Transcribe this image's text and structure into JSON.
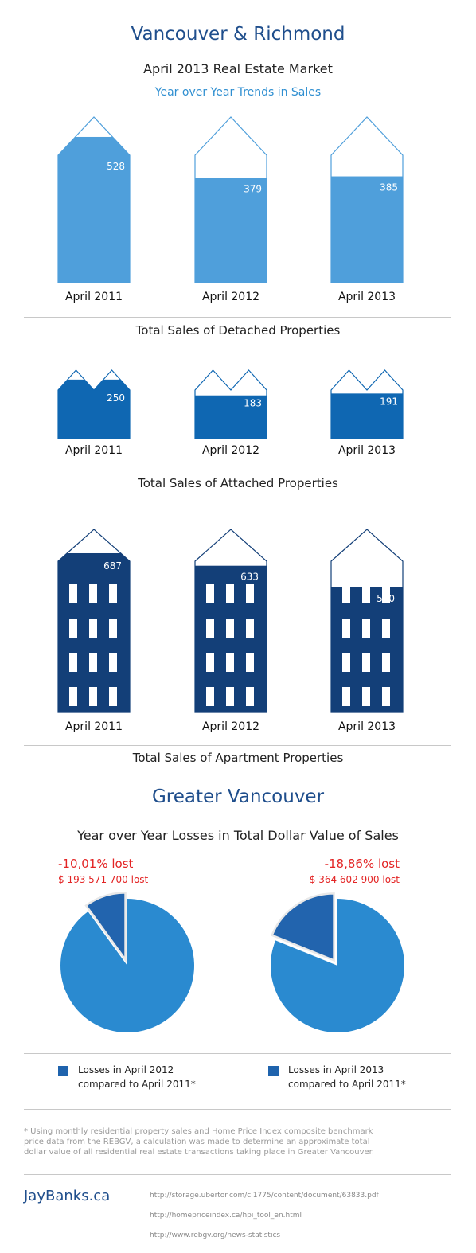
{
  "header": {
    "title": "Vancouver & Richmond",
    "subtitle": "April 2013 Real Estate Market",
    "trend_title": "Year over Year Trends in Sales"
  },
  "chart_data": [
    {
      "type": "bar",
      "title": "Total Sales of Detached Properties",
      "categories": [
        "April 2011",
        "April 2012",
        "April 2013"
      ],
      "values": [
        528,
        379,
        385
      ],
      "ylim": [
        0,
        600
      ],
      "color": "#4f9fdb"
    },
    {
      "type": "bar",
      "title": "Total Sales of Attached Properties",
      "categories": [
        "April 2011",
        "April 2012",
        "April 2013"
      ],
      "values": [
        250,
        183,
        191
      ],
      "ylim": [
        0,
        290
      ],
      "color": "#0f67b2"
    },
    {
      "type": "bar",
      "title": "Total Sales of Apartment Properties",
      "categories": [
        "April 2011",
        "April 2012",
        "April 2013"
      ],
      "values": [
        687,
        633,
        540
      ],
      "ylim": [
        0,
        790
      ],
      "color": "#133f78"
    },
    {
      "type": "pie",
      "title": "Year over Year Losses in Total Dollar Value of Sales",
      "charts": [
        {
          "lost_pct_label": "-10,01% lost",
          "lost_amount_label": "$ 193 571 700 lost",
          "loss_fraction": 0.1001,
          "legend": "Losses in April 2012 compared to April 2011*"
        },
        {
          "lost_pct_label": "-18,86% lost",
          "lost_amount_label": "$ 364 602 900 lost",
          "loss_fraction": 0.1886,
          "legend": "Losses in April 2013 compared to April 2011*"
        }
      ],
      "main_color": "#2a8ad0",
      "loss_color": "#2264ae"
    }
  ],
  "greater_title": "Greater Vancouver",
  "legend": [
    {
      "line1": "Losses in April 2012",
      "line2": "compared to April 2011*"
    },
    {
      "line1": "Losses in April 2013",
      "line2": "compared to April 2011*"
    }
  ],
  "footnote": "* Using monthly residential property sales and Home Price Index composite benchmark price data from the REBGV, a calculation was made to determine an approximate total dollar value of all residential real estate transactions taking place in Greater Vancouver.",
  "brand": "JayBanks.ca",
  "sources": [
    "http://storage.ubertor.com/cl1775/content/document/63833.pdf",
    "http://homepriceindex.ca/hpi_tool_en.html",
    "http://www.rebgv.org/news-statistics"
  ]
}
